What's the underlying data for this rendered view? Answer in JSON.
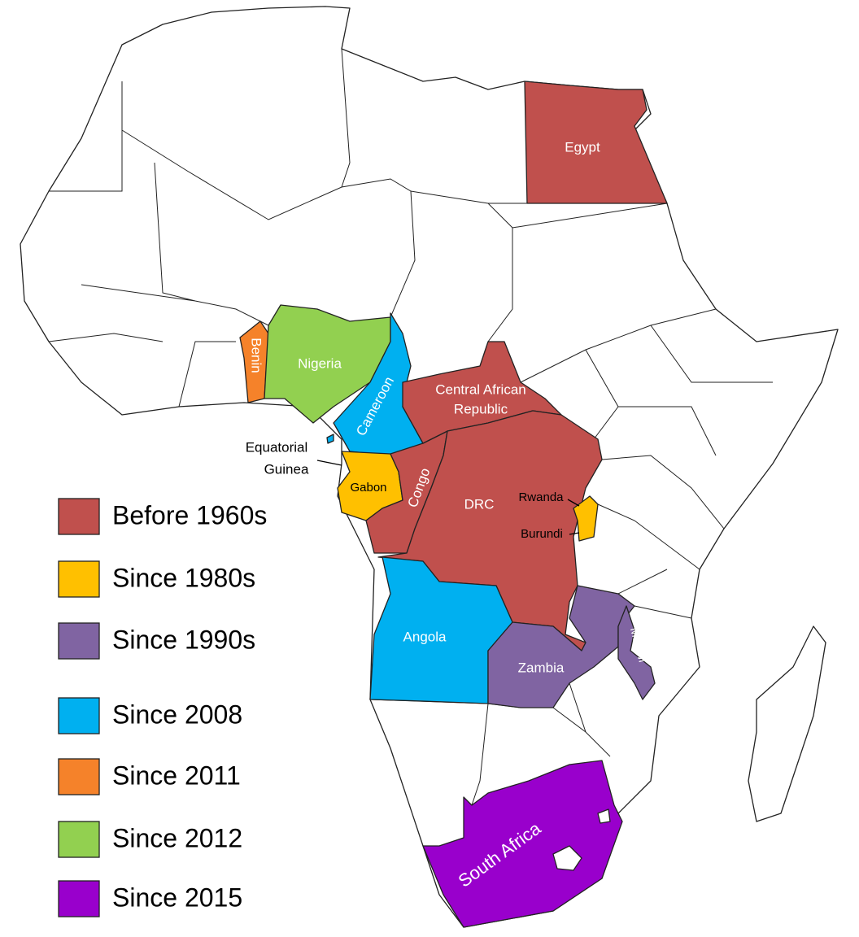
{
  "legend": [
    {
      "label": "Before 1960s",
      "color": "#c0504d"
    },
    {
      "label": "Since 1980s",
      "color": "#ffc000"
    },
    {
      "label": "Since 1990s",
      "color": "#8064a2"
    },
    {
      "label": "Since 2008",
      "color": "#00b0f0"
    },
    {
      "label": "Since 2011",
      "color": "#f5822a"
    },
    {
      "label": "Since 2012",
      "color": "#92d050"
    },
    {
      "label": "Since 2015",
      "color": "#9900cc"
    }
  ],
  "countries": [
    {
      "label": "Egypt",
      "color": "#c0504d"
    },
    {
      "label": "Benin",
      "color": "#f5822a"
    },
    {
      "label": "Nigeria",
      "color": "#92d050"
    },
    {
      "label": "Cameroon",
      "color": "#00b0f0"
    },
    {
      "label": [
        "Equatorial",
        "Guinea"
      ]
    },
    {
      "label": "Gabon",
      "color": "#ffc000"
    },
    {
      "label": "Congo",
      "color": "#c0504d"
    },
    {
      "label": [
        "Central African",
        "Republic"
      ],
      "color": "#c0504d"
    },
    {
      "label": "DRC",
      "color": "#c0504d"
    },
    {
      "label": "Rwanda",
      "color": "#ffc000"
    },
    {
      "label": "Burundi",
      "color": "#ffc000"
    },
    {
      "label": "Angola",
      "color": "#00b0f0"
    },
    {
      "label": "Zambia",
      "color": "#8064a2"
    },
    {
      "label": "Malawi",
      "color": "#8064a2"
    },
    {
      "label": "South Africa",
      "color": "#9900cc"
    }
  ]
}
